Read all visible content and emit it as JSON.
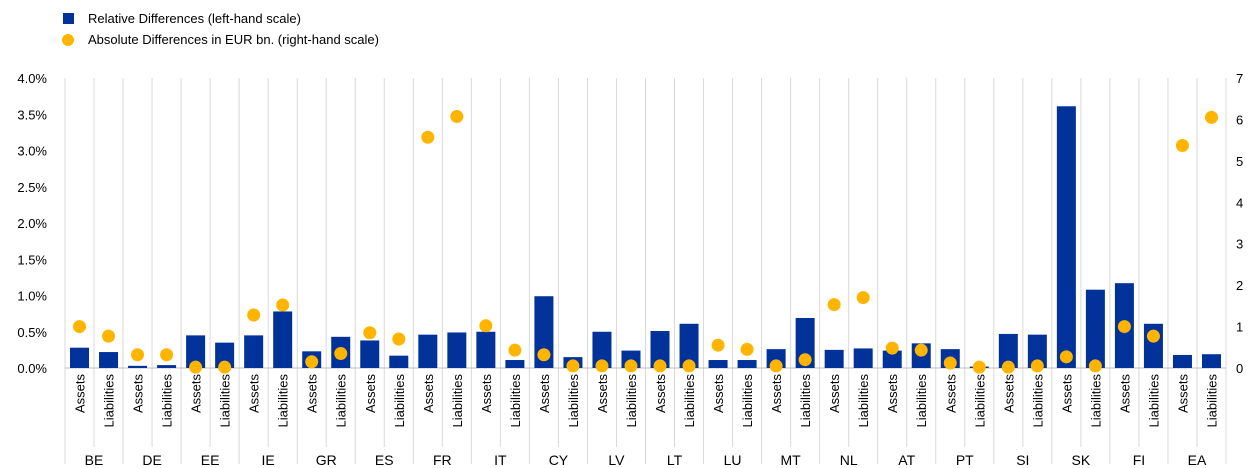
{
  "chart_data": {
    "type": "bar",
    "legend": {
      "bar_label": "Relative Differences (left-hand scale)",
      "dot_label": "Absolute Differences in EUR bn. (right-hand scale)",
      "placement": "top-left"
    },
    "countries": [
      "BE",
      "DE",
      "EE",
      "IE",
      "GR",
      "ES",
      "FR",
      "IT",
      "CY",
      "LV",
      "LT",
      "LU",
      "MT",
      "NL",
      "AT",
      "PT",
      "SI",
      "SK",
      "FI",
      "EA"
    ],
    "subcategories": [
      "Assets",
      "Liabilities"
    ],
    "y_left": {
      "min": 0,
      "max": 4.0,
      "ticks": [
        "0.0%",
        "0.5%",
        "1.0%",
        "1.5%",
        "2.0%",
        "2.5%",
        "3.0%",
        "3.5%",
        "4.0%"
      ]
    },
    "y_right": {
      "min": 0,
      "max": 7,
      "ticks": [
        "0",
        "1",
        "2",
        "3",
        "4",
        "5",
        "6",
        "7"
      ]
    },
    "series": [
      {
        "name": "Relative Differences (left-hand scale)",
        "kind": "bar",
        "axis": "left",
        "color": "#003299",
        "values": [
          0.28,
          0.22,
          0.03,
          0.04,
          0.45,
          0.35,
          0.45,
          0.78,
          0.23,
          0.43,
          0.38,
          0.17,
          0.46,
          0.49,
          0.5,
          0.11,
          0.99,
          0.15,
          0.5,
          0.24,
          0.51,
          0.61,
          0.11,
          0.11,
          0.26,
          0.69,
          0.25,
          0.27,
          0.24,
          0.34,
          0.26,
          0.02,
          0.47,
          0.46,
          3.61,
          1.08,
          1.17,
          0.61,
          0.18,
          0.19
        ]
      },
      {
        "name": "Absolute Differences in EUR bn. (right-hand scale)",
        "kind": "dot",
        "axis": "right",
        "color": "#FFB400",
        "values": [
          1.0,
          0.77,
          0.32,
          0.32,
          0.02,
          0.02,
          1.28,
          1.52,
          0.15,
          0.35,
          0.85,
          0.7,
          5.57,
          6.07,
          1.02,
          0.43,
          0.32,
          0.05,
          0.05,
          0.05,
          0.05,
          0.05,
          0.55,
          0.45,
          0.05,
          0.2,
          1.53,
          1.7,
          0.48,
          0.43,
          0.12,
          0.02,
          0.02,
          0.05,
          0.27,
          0.05,
          1.0,
          0.77,
          5.37,
          6.05
        ]
      }
    ],
    "grid": "vertical-separators"
  }
}
